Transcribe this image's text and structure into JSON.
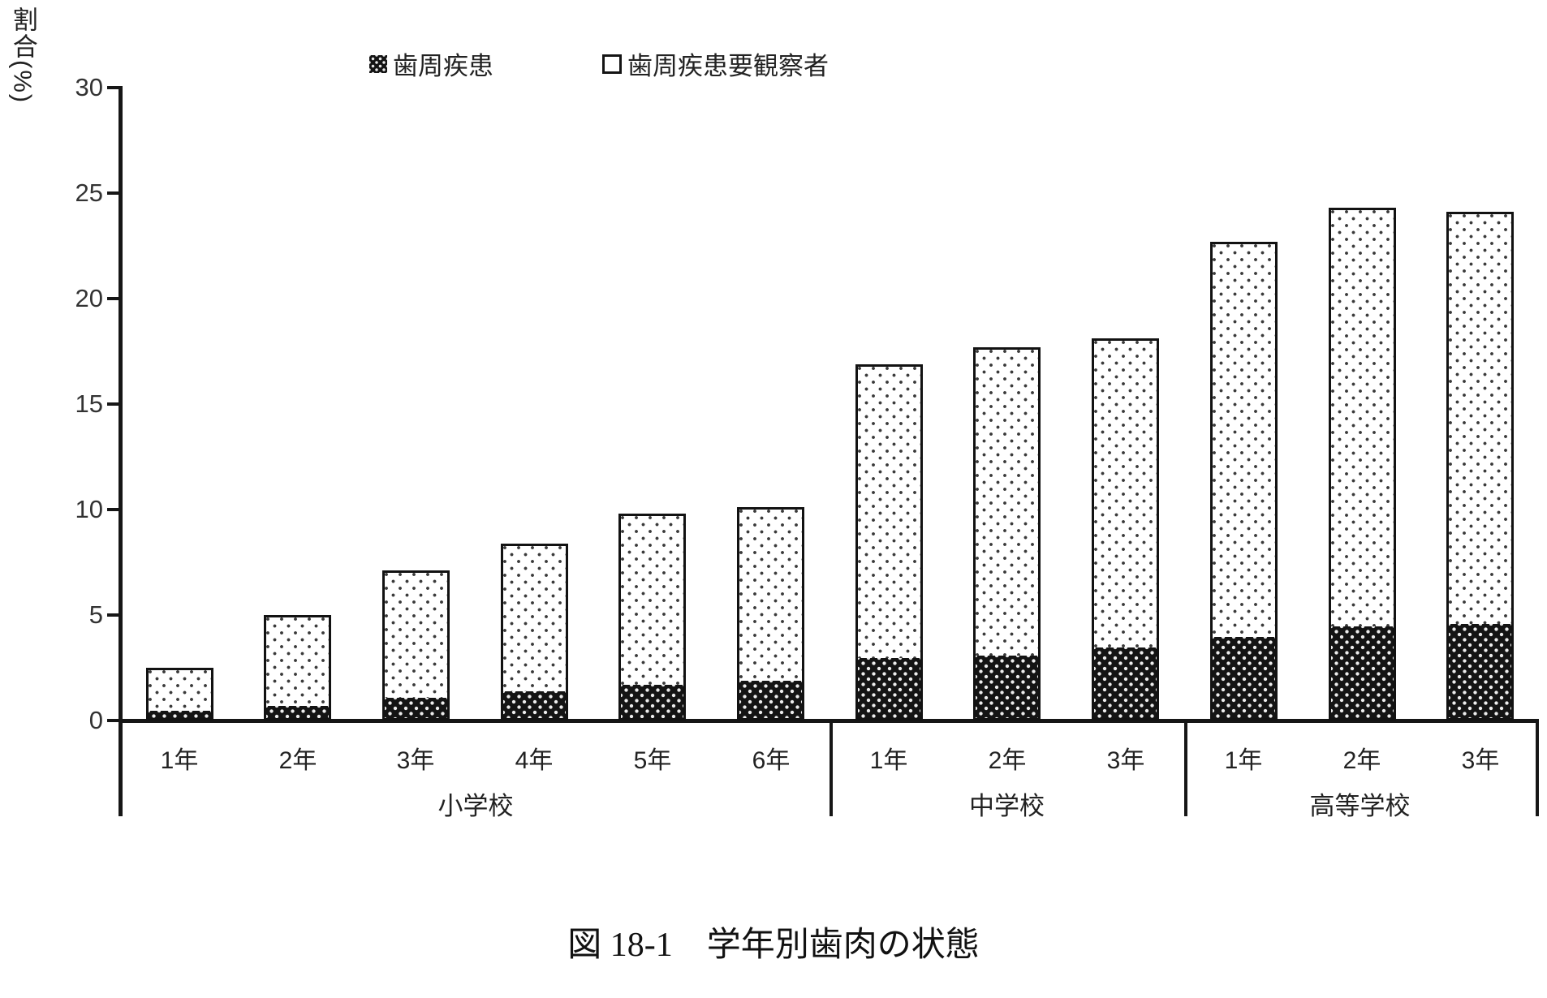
{
  "caption": "図 18-1　学年別歯肉の状態",
  "colors": {
    "bar_dark": "#141414",
    "bar_light": "#ffffff",
    "axis": "#161616"
  },
  "chart_data": {
    "type": "bar",
    "stacked": true,
    "ylabel": "割合(%)",
    "ylim": [
      0,
      30
    ],
    "yticks": [
      0,
      5,
      10,
      15,
      20,
      25,
      30
    ],
    "legend": [
      "歯周疾患",
      "歯周疾患要観察者"
    ],
    "legend_position": "top",
    "grid": false,
    "groups": [
      {
        "label": "小学校",
        "categories": [
          "1年",
          "2年",
          "3年",
          "4年",
          "5年",
          "6年"
        ],
        "series": [
          {
            "name": "歯周疾患",
            "values": [
              0.4,
              0.6,
              1.0,
              1.3,
              1.6,
              1.8
            ]
          },
          {
            "name": "歯周疾患要観察者",
            "values": [
              2.1,
              4.4,
              6.1,
              7.1,
              8.2,
              8.3
            ]
          }
        ],
        "totals": [
          2.5,
          5.0,
          7.1,
          8.4,
          9.8,
          10.1
        ]
      },
      {
        "label": "中学校",
        "categories": [
          "1年",
          "2年",
          "3年"
        ],
        "series": [
          {
            "name": "歯周疾患",
            "values": [
              2.9,
              3.0,
              3.4
            ]
          },
          {
            "name": "歯周疾患要観察者",
            "values": [
              14.0,
              14.7,
              14.7
            ]
          }
        ],
        "totals": [
          16.9,
          17.7,
          18.1
        ]
      },
      {
        "label": "高等学校",
        "categories": [
          "1年",
          "2年",
          "3年"
        ],
        "series": [
          {
            "name": "歯周疾患",
            "values": [
              3.9,
              4.4,
              4.5
            ]
          },
          {
            "name": "歯周疾患要観察者",
            "values": [
              18.8,
              19.9,
              19.6
            ]
          }
        ],
        "totals": [
          22.7,
          24.3,
          24.1
        ]
      }
    ]
  }
}
